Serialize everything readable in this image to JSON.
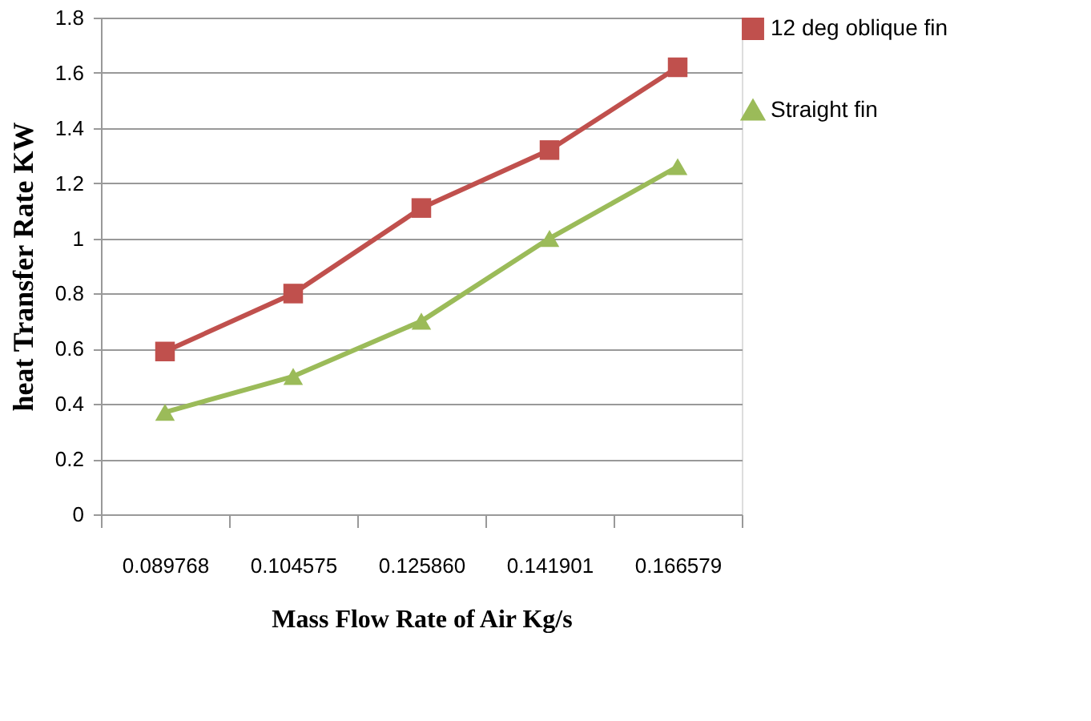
{
  "chart_data": {
    "type": "line",
    "xlabel": "Mass Flow Rate of Air   Kg/s",
    "ylabel": "heat  Transfer Rate KW",
    "categories": [
      "0.089768",
      "0.104575",
      "0.125860",
      "0.141901",
      "0.166579"
    ],
    "series": [
      {
        "name": "12 deg oblique fin",
        "color": "#c0504d",
        "marker": "square",
        "values": [
          0.59,
          0.8,
          1.11,
          1.32,
          1.62
        ]
      },
      {
        "name": "Straight fin",
        "color": "#9bbb59",
        "marker": "triangle",
        "values": [
          0.37,
          0.5,
          0.7,
          1.0,
          1.26
        ]
      }
    ],
    "ylim": [
      0,
      1.8
    ],
    "yticks": [
      0,
      0.2,
      0.4,
      0.6,
      0.8,
      1,
      1.2,
      1.4,
      1.6,
      1.8
    ],
    "grid": "y",
    "legend": "right",
    "line_style": "solid"
  }
}
